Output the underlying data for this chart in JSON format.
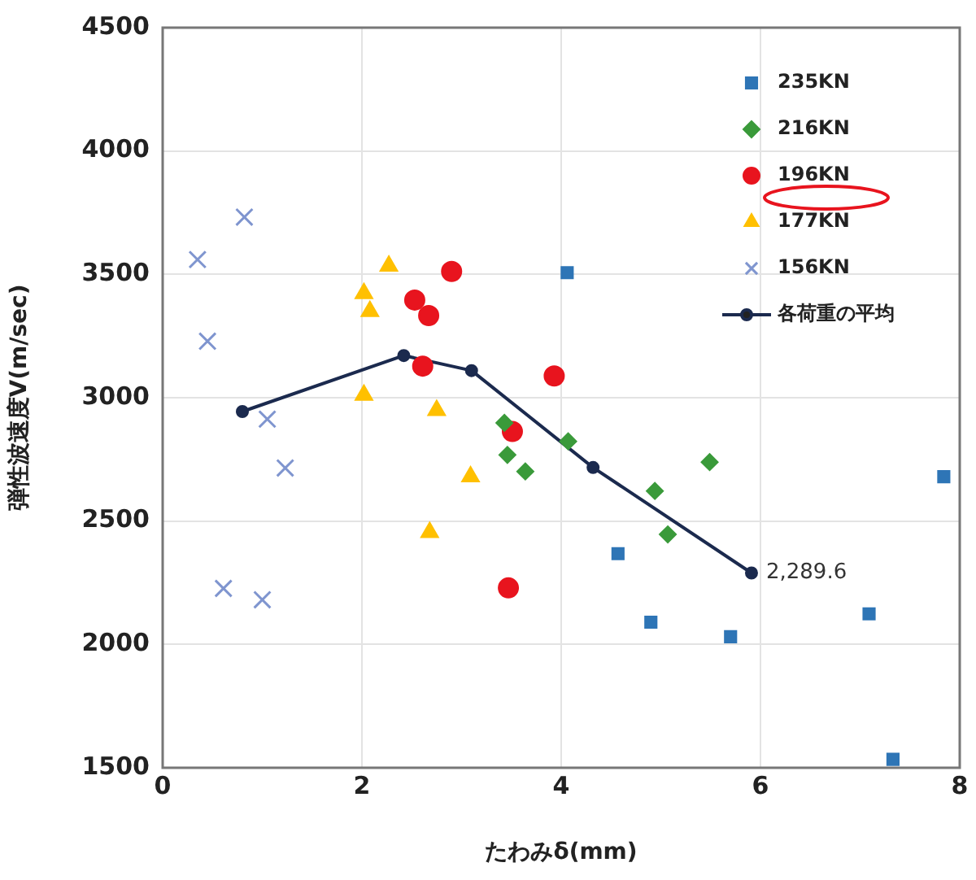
{
  "chart_data": {
    "type": "scatter",
    "xlabel": "たわみδ(mm)",
    "ylabel": "弾性波速度V(m/sec)",
    "xlim": [
      0,
      8
    ],
    "xticks": [
      0,
      2,
      4,
      6,
      8
    ],
    "ylim": [
      1500,
      4500
    ],
    "yticks": [
      1500,
      2000,
      2500,
      3000,
      3500,
      4000,
      4500
    ],
    "grid": true,
    "legend": "top right",
    "annotations": [
      {
        "text": "2,289.6",
        "x": 5.91,
        "y": 2289.6
      }
    ],
    "series": [
      {
        "name": "235KN",
        "color": "#2e75b6",
        "marker": "square",
        "x": [
          4.06,
          4.57,
          4.9,
          5.7,
          7.09,
          7.84,
          7.33
        ],
        "values": [
          3507,
          2368,
          2090,
          2031,
          2124,
          2680,
          1534
        ]
      },
      {
        "name": "216KN",
        "color": "#3a9a3a",
        "marker": "diamond",
        "x": [
          3.43,
          3.46,
          3.64,
          4.07,
          4.94,
          5.07,
          5.49
        ],
        "values": [
          2898,
          2768,
          2701,
          2823,
          2622,
          2446,
          2739
        ]
      },
      {
        "name": "196KN",
        "color": "#e8141e",
        "marker": "circle",
        "x": [
          2.9,
          2.53,
          2.67,
          2.61,
          3.93,
          3.51,
          3.47
        ],
        "values": [
          3512,
          3396,
          3333,
          3128,
          3088,
          2863,
          2229
        ]
      },
      {
        "name": "177KN",
        "color": "#ffc000",
        "marker": "triangle",
        "x": [
          2.27,
          2.02,
          2.08,
          2.02,
          2.75,
          3.09,
          2.68
        ],
        "values": [
          3534,
          3423,
          3350,
          3011,
          2949,
          2680,
          2454
        ]
      },
      {
        "name": "156KN",
        "color": "#7f95cf",
        "marker": "cross",
        "x": [
          0.82,
          0.35,
          0.45,
          1.05,
          1.23,
          0.61,
          1.0
        ],
        "values": [
          3732,
          3560,
          3229,
          2913,
          2715,
          2227,
          2181
        ]
      },
      {
        "name": "各荷重の平均",
        "type": "line",
        "color": "#1b2a4e",
        "marker": "circle",
        "line_style": "solid",
        "x": [
          0.8,
          2.42,
          3.1,
          4.32,
          5.91
        ],
        "values": [
          2944,
          3171,
          3110,
          2717,
          2289.6
        ]
      }
    ]
  }
}
